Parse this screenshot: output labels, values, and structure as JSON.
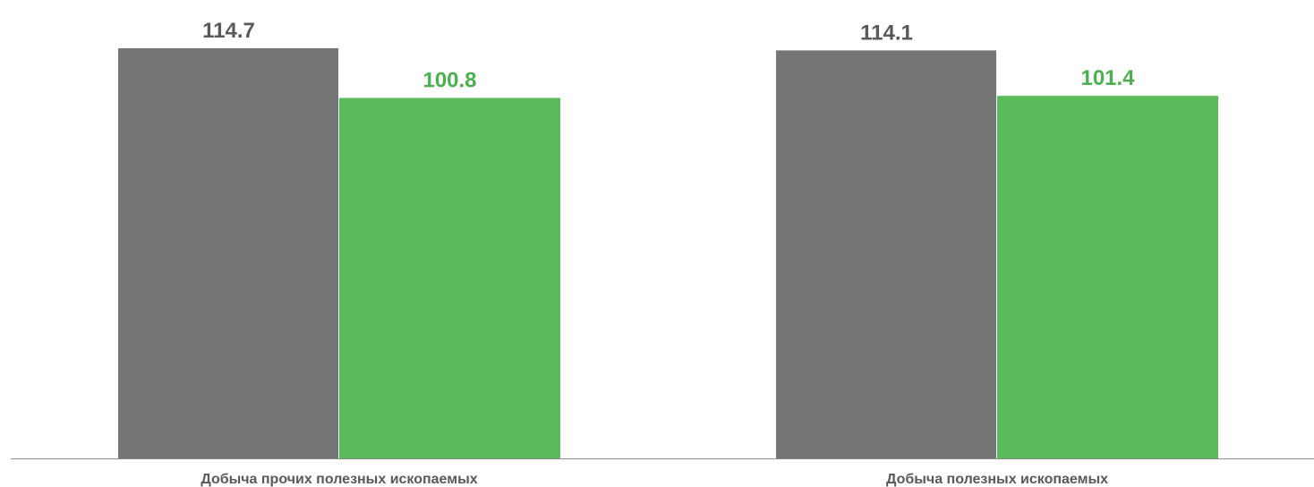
{
  "chart_data": {
    "type": "bar",
    "categories": [
      "Добыча прочих полезных ископаемых",
      "Добыча полезных ископаемых"
    ],
    "series": [
      {
        "values": [
          114.7,
          114.1
        ],
        "color": "#757575",
        "label_color": "#595959"
      },
      {
        "values": [
          100.8,
          101.4
        ],
        "color": "#5BBB5B",
        "label_color": "#4CAF50"
      }
    ],
    "ylim": [
      0,
      114.7
    ],
    "axis_color": "#8C8C8C",
    "grid": false,
    "legend": "none"
  }
}
